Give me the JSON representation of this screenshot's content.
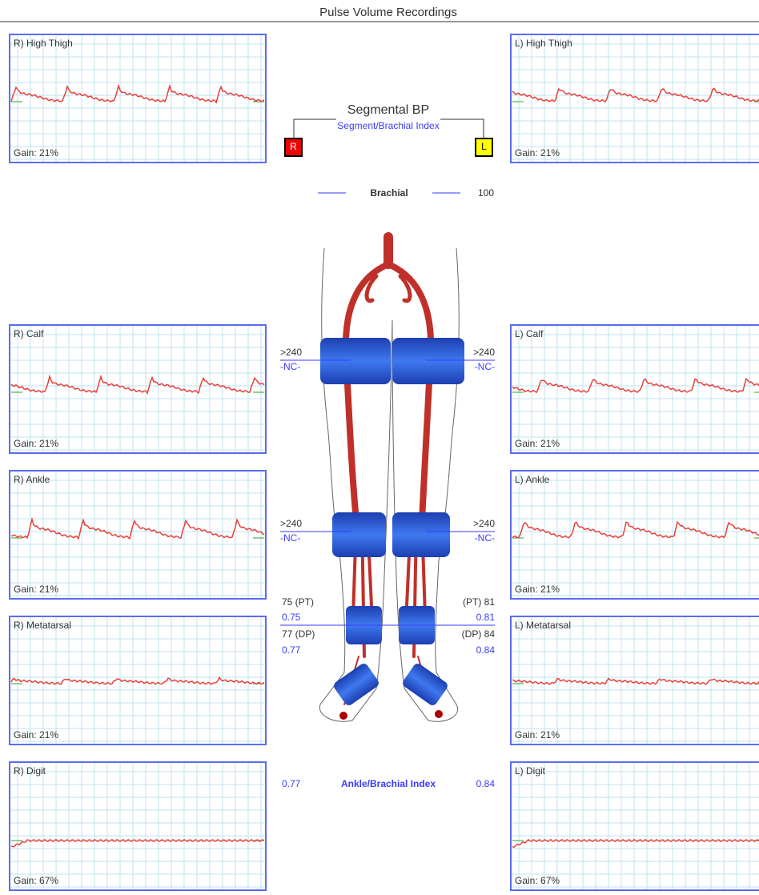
{
  "header": {
    "title": "Pulse Volume Recordings"
  },
  "center": {
    "title": "Segmental BP",
    "subtitle": "Segment/Brachial Index",
    "right_box": "R",
    "left_box": "L",
    "brachial_label": "Brachial",
    "brachial_value": "100"
  },
  "panels": [
    {
      "label": "R) High Thigh",
      "gain": "Gain: 21%"
    },
    {
      "label": "L) High Thigh",
      "gain": "Gain: 21%"
    },
    {
      "label": "R) Calf",
      "gain": "Gain: 21%"
    },
    {
      "label": "L) Calf",
      "gain": "Gain: 21%"
    },
    {
      "label": "R) Ankle",
      "gain": "Gain: 21%"
    },
    {
      "label": "L) Ankle",
      "gain": "Gain: 21%"
    },
    {
      "label": "R) Metatarsal",
      "gain": "Gain: 21%"
    },
    {
      "label": "L) Metatarsal",
      "gain": "Gain: 21%"
    },
    {
      "label": "R) Digit",
      "gain": "Gain: 67%"
    },
    {
      "label": "L) Digit",
      "gain": "Gain: 67%"
    }
  ],
  "thigh": {
    "right_pressure": ">240",
    "right_index": "-NC-",
    "left_pressure": ">240",
    "left_index": "-NC-"
  },
  "calf": {
    "right_pressure": ">240",
    "right_index": "-NC-",
    "left_pressure": ">240",
    "left_index": "-NC-"
  },
  "ankle": {
    "right_pt": "75 (PT)",
    "right_pt_index": "0.75",
    "right_dp": "77 (DP)",
    "right_dp_index": "0.77",
    "left_pt": "(PT) 81",
    "left_pt_index": "0.81",
    "left_dp": "(DP) 84",
    "left_dp_index": "0.84"
  },
  "abi": {
    "right": "0.77",
    "label": "Ankle/Brachial Index",
    "left": "0.84"
  }
}
